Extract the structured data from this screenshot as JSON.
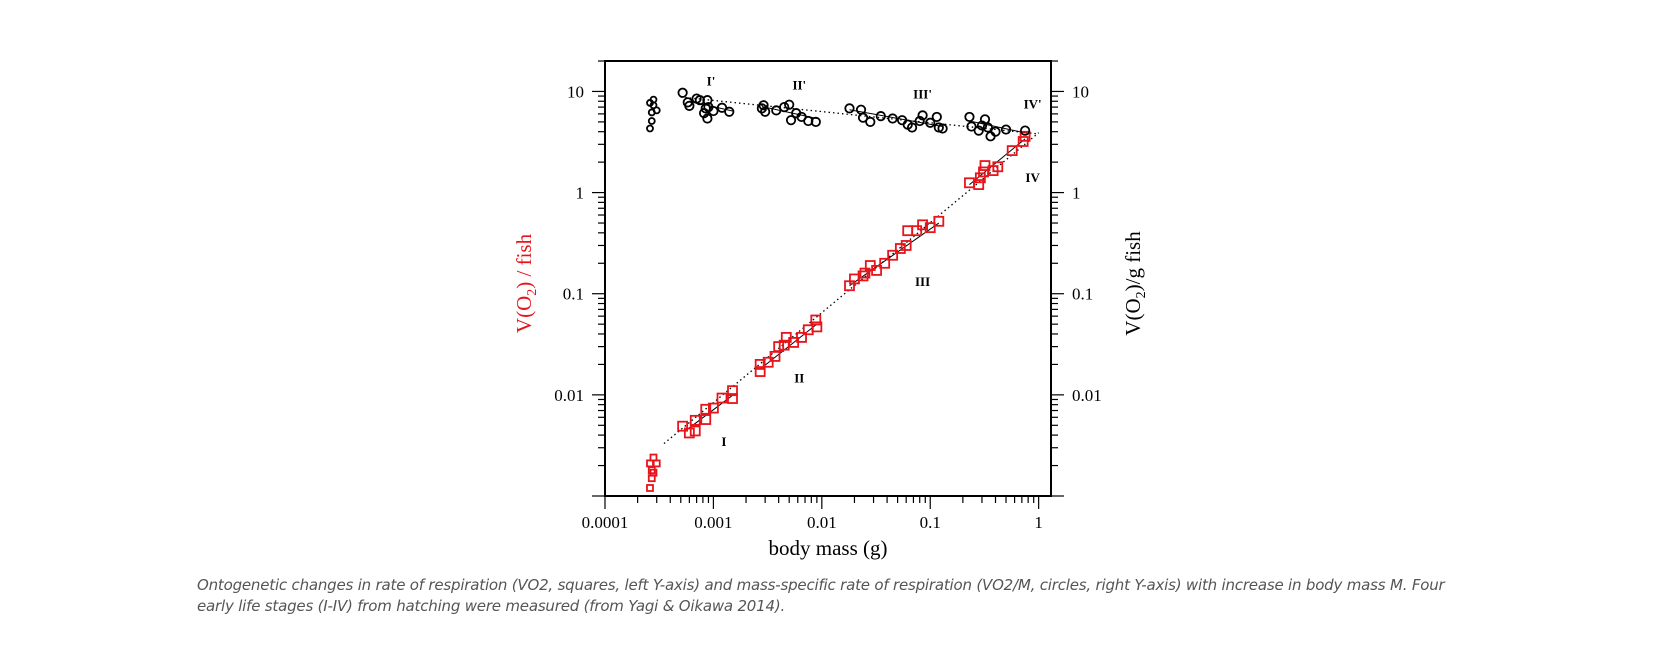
{
  "caption": "Ontogenetic changes in rate of respiration (VO2, squares, left Y-axis) and mass-specific rate of respiration (VO2/M, circles, right Y-axis) with increase in body mass M. Four early life stages (I-IV) from hatching were measured (from Yagi & Oikawa 2014).",
  "chart_data": {
    "type": "scatter",
    "title": "",
    "xlabel": "body mass (g)",
    "ylabel_left": {
      "prefix": "V(O",
      "sub": "2",
      "suffix": ") /  fish"
    },
    "ylabel_right": {
      "prefix": "V(O",
      "sub": "2",
      "suffix": ")/g   fish"
    },
    "x_scale": "log",
    "y_scale": "log",
    "xlim": [
      0.0001,
      1.3
    ],
    "ylim": [
      0.001,
      20
    ],
    "x_ticks": [
      {
        "value": 0.0001,
        "label": "0.0001"
      },
      {
        "value": 0.001,
        "label": "0.001"
      },
      {
        "value": 0.01,
        "label": "0.01"
      },
      {
        "value": 0.1,
        "label": "0.1"
      },
      {
        "value": 1,
        "label": "1"
      }
    ],
    "y_ticks_left": [
      {
        "value": 0.01,
        "label": "0.01"
      },
      {
        "value": 0.1,
        "label": "0.1"
      },
      {
        "value": 1,
        "label": "1"
      },
      {
        "value": 10,
        "label": "10"
      }
    ],
    "y_ticks_right": [
      {
        "value": 0.01,
        "label": "0.01"
      },
      {
        "value": 0.1,
        "label": "0.1"
      },
      {
        "value": 1,
        "label": "1"
      },
      {
        "value": 10,
        "label": "10"
      }
    ],
    "grid": false,
    "colors": {
      "squares": "#e8141b",
      "circles": "#000000",
      "axes": "#000000"
    },
    "series": [
      {
        "marker": "square",
        "axis": "left",
        "color": "#e8141b",
        "points": [
          [
            0.00026,
            0.0012
          ],
          [
            0.00027,
            0.0015
          ],
          [
            0.00027,
            0.0018
          ],
          [
            0.00026,
            0.0021
          ],
          [
            0.00028,
            0.0024
          ],
          [
            0.0003,
            0.0021
          ],
          [
            0.00028,
            0.0017
          ],
          [
            0.00052,
            0.0049
          ],
          [
            0.0006,
            0.0042
          ],
          [
            0.00068,
            0.0044
          ],
          [
            0.00068,
            0.0056
          ],
          [
            0.00085,
            0.0057
          ],
          [
            0.00085,
            0.0072
          ],
          [
            0.001,
            0.0074
          ],
          [
            0.0012,
            0.0093
          ],
          [
            0.0015,
            0.0092
          ],
          [
            0.0015,
            0.011
          ],
          [
            0.0027,
            0.017
          ],
          [
            0.0027,
            0.02
          ],
          [
            0.0032,
            0.021
          ],
          [
            0.0037,
            0.024
          ],
          [
            0.004,
            0.03
          ],
          [
            0.0045,
            0.031
          ],
          [
            0.0047,
            0.037
          ],
          [
            0.0055,
            0.033
          ],
          [
            0.0065,
            0.037
          ],
          [
            0.0075,
            0.044
          ],
          [
            0.009,
            0.047
          ],
          [
            0.0088,
            0.055
          ],
          [
            0.018,
            0.12
          ],
          [
            0.02,
            0.14
          ],
          [
            0.024,
            0.15
          ],
          [
            0.025,
            0.16
          ],
          [
            0.028,
            0.19
          ],
          [
            0.032,
            0.17
          ],
          [
            0.038,
            0.2
          ],
          [
            0.045,
            0.24
          ],
          [
            0.053,
            0.28
          ],
          [
            0.06,
            0.3
          ],
          [
            0.062,
            0.42
          ],
          [
            0.075,
            0.42
          ],
          [
            0.085,
            0.48
          ],
          [
            0.1,
            0.45
          ],
          [
            0.12,
            0.52
          ],
          [
            0.23,
            1.25
          ],
          [
            0.28,
            1.2
          ],
          [
            0.29,
            1.4
          ],
          [
            0.31,
            1.6
          ],
          [
            0.32,
            1.85
          ],
          [
            0.38,
            1.65
          ],
          [
            0.42,
            1.8
          ],
          [
            0.57,
            2.6
          ],
          [
            0.72,
            3.2
          ],
          [
            0.75,
            3.6
          ]
        ]
      },
      {
        "marker": "circle",
        "axis": "right",
        "color": "#000000",
        "points": [
          [
            0.00026,
            4.3
          ],
          [
            0.00027,
            5.1
          ],
          [
            0.00027,
            6.2
          ],
          [
            0.00026,
            7.7
          ],
          [
            0.00028,
            8.3
          ],
          [
            0.00028,
            7.3
          ],
          [
            0.0003,
            6.5
          ],
          [
            0.00052,
            9.7
          ],
          [
            0.00058,
            7.8
          ],
          [
            0.0006,
            7.2
          ],
          [
            0.0007,
            8.5
          ],
          [
            0.00075,
            8.2
          ],
          [
            0.00082,
            6.1
          ],
          [
            0.00085,
            6.8
          ],
          [
            0.00088,
            8.2
          ],
          [
            0.00088,
            5.4
          ],
          [
            0.0009,
            7.0
          ],
          [
            0.001,
            6.4
          ],
          [
            0.0012,
            6.9
          ],
          [
            0.0014,
            6.3
          ],
          [
            0.0028,
            6.8
          ],
          [
            0.0029,
            7.3
          ],
          [
            0.003,
            6.3
          ],
          [
            0.0038,
            6.5
          ],
          [
            0.0045,
            7.0
          ],
          [
            0.005,
            7.4
          ],
          [
            0.0052,
            5.2
          ],
          [
            0.0058,
            6.1
          ],
          [
            0.0065,
            5.6
          ],
          [
            0.0075,
            5.1
          ],
          [
            0.0088,
            5.0
          ],
          [
            0.018,
            6.8
          ],
          [
            0.023,
            6.6
          ],
          [
            0.024,
            5.5
          ],
          [
            0.028,
            5.0
          ],
          [
            0.035,
            5.7
          ],
          [
            0.045,
            5.4
          ],
          [
            0.055,
            5.2
          ],
          [
            0.062,
            4.7
          ],
          [
            0.068,
            4.4
          ],
          [
            0.08,
            5.1
          ],
          [
            0.085,
            5.8
          ],
          [
            0.1,
            4.9
          ],
          [
            0.115,
            5.6
          ],
          [
            0.12,
            4.4
          ],
          [
            0.13,
            4.3
          ],
          [
            0.23,
            5.6
          ],
          [
            0.24,
            4.5
          ],
          [
            0.28,
            4.1
          ],
          [
            0.3,
            4.6
          ],
          [
            0.32,
            5.3
          ],
          [
            0.34,
            4.4
          ],
          [
            0.36,
            3.6
          ],
          [
            0.4,
            4.0
          ],
          [
            0.5,
            4.2
          ],
          [
            0.75,
            4.1
          ]
        ]
      }
    ],
    "fit_lines": [
      {
        "kind": "dotted",
        "x": [
          0.00035,
          1.0
        ],
        "y": [
          0.0033,
          3.9
        ]
      },
      {
        "kind": "dotted",
        "x": [
          0.0005,
          1.0
        ],
        "y": [
          8.8,
          3.8
        ]
      }
    ],
    "stage_segments": [
      {
        "x": [
          0.00055,
          0.0015
        ],
        "y": [
          0.0044,
          0.0099
        ]
      },
      {
        "x": [
          0.0027,
          0.009
        ],
        "y": [
          0.018,
          0.05
        ]
      },
      {
        "x": [
          0.018,
          0.12
        ],
        "y": [
          0.12,
          0.5
        ]
      },
      {
        "x": [
          0.23,
          0.75
        ],
        "y": [
          1.2,
          3.4
        ]
      },
      {
        "x": [
          0.0006,
          0.0015
        ],
        "y": [
          8.0,
          6.4
        ]
      },
      {
        "x": [
          0.0028,
          0.009
        ],
        "y": [
          7.1,
          5.4
        ]
      },
      {
        "x": [
          0.018,
          0.13
        ],
        "y": [
          6.6,
          4.5
        ]
      },
      {
        "x": [
          0.23,
          0.75
        ],
        "y": [
          5.1,
          3.9
        ]
      }
    ],
    "annotations": [
      {
        "text": "I",
        "x": 0.00125,
        "y": 0.0034
      },
      {
        "text": "II",
        "x": 0.0062,
        "y": 0.0145
      },
      {
        "text": "III",
        "x": 0.085,
        "y": 0.13
      },
      {
        "text": "IV",
        "x": 0.88,
        "y": 1.4
      },
      {
        "text": "I'",
        "x": 0.00095,
        "y": 12.5
      },
      {
        "text": "II'",
        "x": 0.0062,
        "y": 11.5
      },
      {
        "text": "III'",
        "x": 0.085,
        "y": 9.3
      },
      {
        "text": "IV'",
        "x": 0.88,
        "y": 7.4
      }
    ]
  }
}
